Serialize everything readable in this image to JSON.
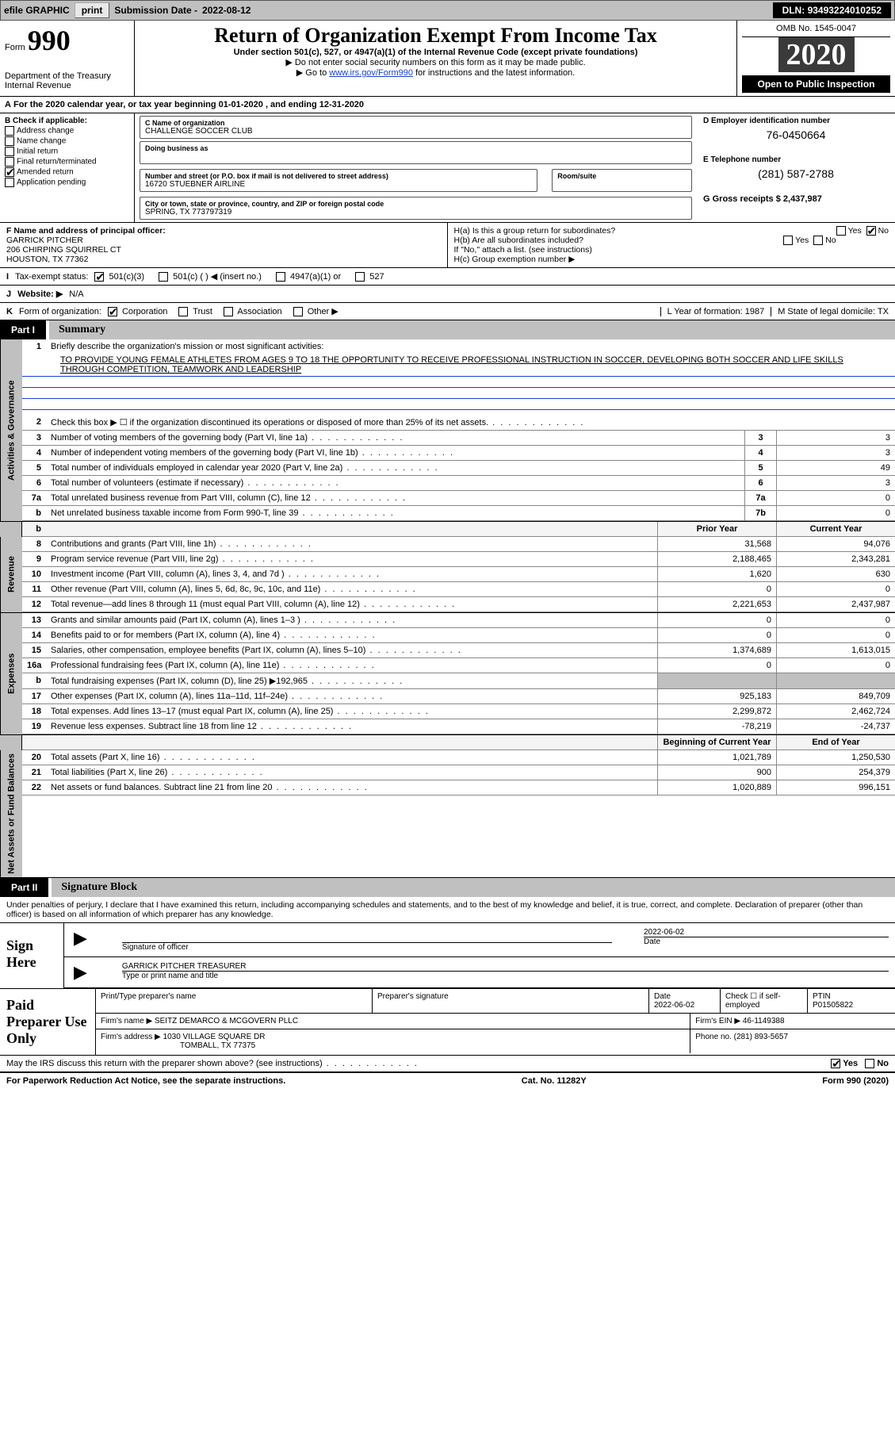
{
  "colors": {
    "link": "#1a3fd6",
    "shade": "#c0c0c0",
    "darkbox": "#3a3a3a"
  },
  "topbar": {
    "efile_label": "efile GRAPHIC",
    "print_btn": "print",
    "subdate_label": "Submission Date - ",
    "subdate_value": "2022-08-12",
    "dln_label": "DLN: ",
    "dln_value": "93493224010252"
  },
  "header": {
    "form_word": "Form",
    "form_num": "990",
    "dept": "Department of the Treasury\nInternal Revenue",
    "title": "Return of Organization Exempt From Income Tax",
    "sub": "Under section 501(c), 527, or 4947(a)(1) of the Internal Revenue Code (except private foundations)",
    "note1": "▶ Do not enter social security numbers on this form as it may be made public.",
    "note2_pre": "▶ Go to ",
    "note2_link": "www.irs.gov/Form990",
    "note2_post": " for instructions and the latest information.",
    "omb": "OMB No. 1545-0047",
    "year": "2020",
    "open": "Open to Public Inspection"
  },
  "period": {
    "label_a": "A",
    "text": "For the 2020 calendar year, or tax year beginning 01-01-2020   , and ending 12-31-2020"
  },
  "section_b": {
    "hdr": "B Check if applicable:",
    "opts": [
      {
        "label": "Address change",
        "checked": false
      },
      {
        "label": "Name change",
        "checked": false
      },
      {
        "label": "Initial return",
        "checked": false
      },
      {
        "label": "Final return/terminated",
        "checked": false
      },
      {
        "label": "Amended return",
        "checked": true
      },
      {
        "label": "Application pending",
        "checked": false
      }
    ],
    "c_label": "C Name of organization",
    "c_value": "CHALLENGE SOCCER CLUB",
    "dba_label": "Doing business as",
    "addr_label": "Number and street (or P.O. box if mail is not delivered to street address)",
    "room_label": "Room/suite",
    "addr_value": "16720 STUEBNER AIRLINE",
    "city_label": "City or town, state or province, country, and ZIP or foreign postal code",
    "city_value": "SPRING, TX  773797319",
    "d_label": "D Employer identification number",
    "d_value": "76-0450664",
    "e_label": "E Telephone number",
    "e_value": "(281) 587-2788",
    "g_label": "G Gross receipts $ ",
    "g_value": "2,437,987"
  },
  "fh": {
    "f_label": "F  Name and address of principal officer:",
    "f_name": "GARRICK PITCHER",
    "f_addr1": "206 CHIRPING SQUIRREL CT",
    "f_addr2": "HOUSTON, TX  77362",
    "ha": "H(a)  Is this a group return for subordinates?",
    "ha_yes": "Yes",
    "ha_no": "No",
    "ha_val": "No",
    "hb": "H(b)  Are all subordinates included?",
    "hb_note": "If \"No,\" attach a list. (see instructions)",
    "hc": "H(c)  Group exemption number ▶"
  },
  "line_i": {
    "label": "I",
    "text": "Tax-exempt status:",
    "opts": [
      "501(c)(3)",
      "501(c) (  ) ◀ (insert no.)",
      "4947(a)(1) or",
      "527"
    ],
    "checked_idx": 0
  },
  "line_j": {
    "label": "J",
    "text": "Website: ▶",
    "value": "N/A"
  },
  "line_k": {
    "label": "K",
    "text": "Form of organization:",
    "opts": [
      "Corporation",
      "Trust",
      "Association",
      "Other ▶"
    ],
    "checked_idx": 0
  },
  "lm": {
    "l": "L Year of formation: 1987",
    "m": "M State of legal domicile: TX"
  },
  "part1": {
    "tag": "Part I",
    "title": "Summary"
  },
  "mission": {
    "num": "1",
    "lead": "Briefly describe the organization's mission or most significant activities:",
    "text": "TO PROVIDE YOUNG FEMALE ATHLETES FROM AGES 9 TO 18 THE OPPORTUNITY TO RECEIVE PROFESSIONAL INSTRUCTION IN SOCCER, DEVELOPING BOTH SOCCER AND LIFE SKILLS THROUGH COMPETITION, TEAMWORK AND LEADERSHIP"
  },
  "gov_lines": [
    {
      "n": "2",
      "t": "Check this box ▶ ☐  if the organization discontinued its operations or disposed of more than 25% of its net assets.",
      "box": "",
      "v": ""
    },
    {
      "n": "3",
      "t": "Number of voting members of the governing body (Part VI, line 1a)",
      "box": "3",
      "v": "3"
    },
    {
      "n": "4",
      "t": "Number of independent voting members of the governing body (Part VI, line 1b)",
      "box": "4",
      "v": "3"
    },
    {
      "n": "5",
      "t": "Total number of individuals employed in calendar year 2020 (Part V, line 2a)",
      "box": "5",
      "v": "49"
    },
    {
      "n": "6",
      "t": "Total number of volunteers (estimate if necessary)",
      "box": "6",
      "v": "3"
    },
    {
      "n": "7a",
      "t": "Total unrelated business revenue from Part VIII, column (C), line 12",
      "box": "7a",
      "v": "0"
    },
    {
      "n": "b",
      "t": "Net unrelated business taxable income from Form 990-T, line 39",
      "box": "7b",
      "v": "0"
    }
  ],
  "cols": {
    "prior": "Prior Year",
    "curr": "Current Year"
  },
  "revenue": [
    {
      "n": "8",
      "t": "Contributions and grants (Part VIII, line 1h)",
      "p": "31,568",
      "c": "94,076"
    },
    {
      "n": "9",
      "t": "Program service revenue (Part VIII, line 2g)",
      "p": "2,188,465",
      "c": "2,343,281"
    },
    {
      "n": "10",
      "t": "Investment income (Part VIII, column (A), lines 3, 4, and 7d )",
      "p": "1,620",
      "c": "630"
    },
    {
      "n": "11",
      "t": "Other revenue (Part VIII, column (A), lines 5, 6d, 8c, 9c, 10c, and 11e)",
      "p": "0",
      "c": "0"
    },
    {
      "n": "12",
      "t": "Total revenue—add lines 8 through 11 (must equal Part VIII, column (A), line 12)",
      "p": "2,221,653",
      "c": "2,437,987"
    }
  ],
  "expenses": [
    {
      "n": "13",
      "t": "Grants and similar amounts paid (Part IX, column (A), lines 1–3 )",
      "p": "0",
      "c": "0"
    },
    {
      "n": "14",
      "t": "Benefits paid to or for members (Part IX, column (A), line 4)",
      "p": "0",
      "c": "0"
    },
    {
      "n": "15",
      "t": "Salaries, other compensation, employee benefits (Part IX, column (A), lines 5–10)",
      "p": "1,374,689",
      "c": "1,613,015"
    },
    {
      "n": "16a",
      "t": "Professional fundraising fees (Part IX, column (A), line 11e)",
      "p": "0",
      "c": "0"
    },
    {
      "n": "b",
      "t": "Total fundraising expenses (Part IX, column (D), line 25) ▶192,965",
      "p": "shade",
      "c": "shade"
    },
    {
      "n": "17",
      "t": "Other expenses (Part IX, column (A), lines 11a–11d, 11f–24e)",
      "p": "925,183",
      "c": "849,709"
    },
    {
      "n": "18",
      "t": "Total expenses. Add lines 13–17 (must equal Part IX, column (A), line 25)",
      "p": "2,299,872",
      "c": "2,462,724"
    },
    {
      "n": "19",
      "t": "Revenue less expenses. Subtract line 18 from line 12",
      "p": "-78,219",
      "c": "-24,737"
    }
  ],
  "net_hdr": {
    "p": "Beginning of Current Year",
    "c": "End of Year"
  },
  "net": [
    {
      "n": "20",
      "t": "Total assets (Part X, line 16)",
      "p": "1,021,789",
      "c": "1,250,530"
    },
    {
      "n": "21",
      "t": "Total liabilities (Part X, line 26)",
      "p": "900",
      "c": "254,379"
    },
    {
      "n": "22",
      "t": "Net assets or fund balances. Subtract line 21 from line 20",
      "p": "1,020,889",
      "c": "996,151"
    }
  ],
  "part2": {
    "tag": "Part II",
    "title": "Signature Block"
  },
  "perjury": "Under penalties of perjury, I declare that I have examined this return, including accompanying schedules and statements, and to the best of my knowledge and belief, it is true, correct, and complete. Declaration of preparer (other than officer) is based on all information of which preparer has any knowledge.",
  "sign": {
    "label": "Sign Here",
    "sig_of_officer": "Signature of officer",
    "date_label": "Date",
    "date_value": "2022-06-02",
    "name": "GARRICK PITCHER  TREASURER",
    "name_label": "Type or print name and title"
  },
  "paid": {
    "label": "Paid Preparer Use Only",
    "h1": "Print/Type preparer's name",
    "h2": "Preparer's signature",
    "h3": "Date",
    "h3v": "2022-06-02",
    "h4": "Check ☐ if self-employed",
    "h5": "PTIN",
    "h5v": "P01505822",
    "firm_label": "Firm's name    ▶",
    "firm": "SEITZ DEMARCO & MCGOVERN PLLC",
    "ein_label": "Firm's EIN ▶",
    "ein": "46-1149388",
    "addr_label": "Firm's address ▶",
    "addr1": "1030 VILLAGE SQUARE DR",
    "addr2": "TOMBALL, TX  77375",
    "phone_label": "Phone no. ",
    "phone": "(281) 893-5657"
  },
  "discuss": {
    "q": "May the IRS discuss this return with the preparer shown above? (see instructions)",
    "yes": "Yes",
    "no": "No",
    "val": "Yes"
  },
  "footer": {
    "left": "For Paperwork Reduction Act Notice, see the separate instructions.",
    "mid": "Cat. No. 11282Y",
    "right": "Form 990 (2020)"
  },
  "vtabs": {
    "gov": "Activities & Governance",
    "rev": "Revenue",
    "exp": "Expenses",
    "net": "Net Assets or Fund Balances"
  }
}
